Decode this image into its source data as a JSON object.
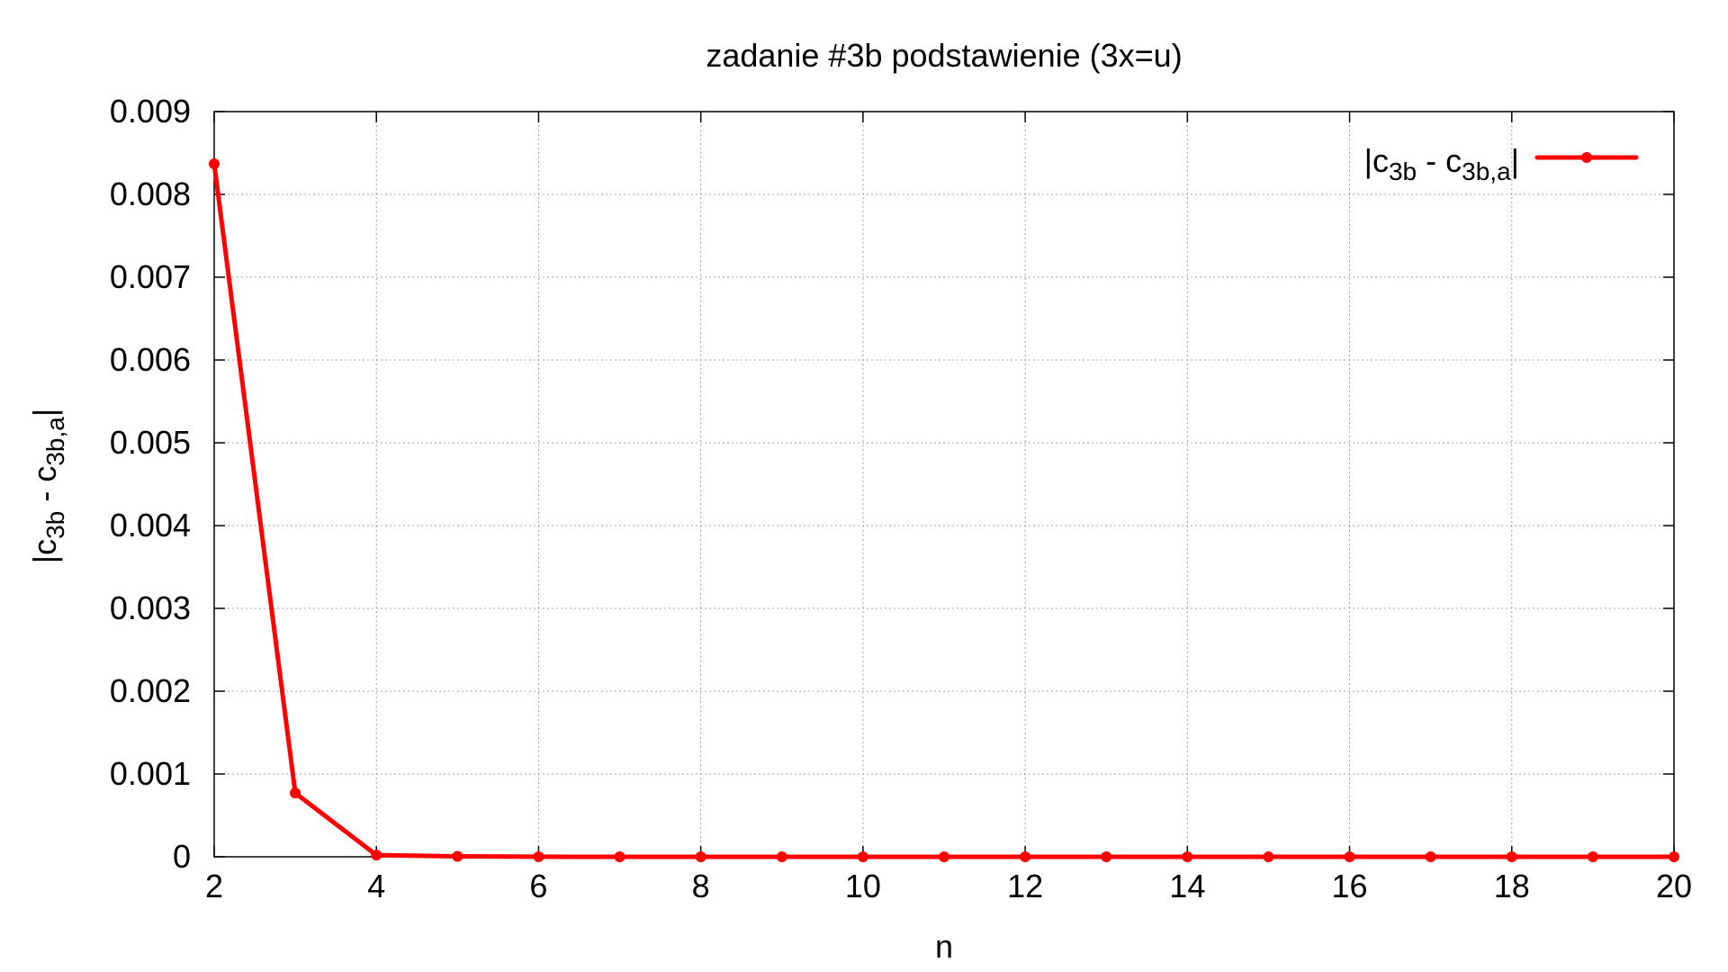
{
  "colors": {
    "series": "#ff0000",
    "grid": "#a0a0a0",
    "axis": "#000000",
    "background": "#ffffff"
  },
  "chart_data": {
    "type": "line",
    "title": "zadanie #3b podstawienie (3x=u)",
    "xlabel": "n",
    "ylabel": {
      "prefix": "|c",
      "sub1": "3b",
      "middle": " - c",
      "sub2": "3b,a",
      "suffix": "|"
    },
    "xlim": [
      2,
      20
    ],
    "ylim": [
      0,
      0.009
    ],
    "xticks": [
      2,
      4,
      6,
      8,
      10,
      12,
      14,
      16,
      18,
      20
    ],
    "xtick_labels": [
      "2",
      "4",
      "6",
      "8",
      "10",
      "12",
      "14",
      "16",
      "18",
      "20"
    ],
    "yticks": [
      0,
      0.001,
      0.002,
      0.003,
      0.004,
      0.005,
      0.006,
      0.007,
      0.008,
      0.009
    ],
    "ytick_labels": [
      "0",
      "0.001",
      "0.002",
      "0.003",
      "0.004",
      "0.005",
      "0.006",
      "0.007",
      "0.008",
      "0.009"
    ],
    "grid": true,
    "legend_position": "top-right",
    "series": [
      {
        "name": {
          "prefix": "|c",
          "sub1": "3b",
          "middle": " - c",
          "sub2": "3b,a",
          "suffix": "|"
        },
        "x": [
          2,
          3,
          4,
          5,
          6,
          7,
          8,
          9,
          10,
          11,
          12,
          13,
          14,
          15,
          16,
          17,
          18,
          19,
          20
        ],
        "y": [
          0.00837,
          0.00077,
          2e-05,
          5e-06,
          1e-06,
          0,
          0,
          0,
          0,
          0,
          0,
          0,
          0,
          0,
          0,
          0,
          0,
          0,
          0
        ]
      }
    ]
  }
}
